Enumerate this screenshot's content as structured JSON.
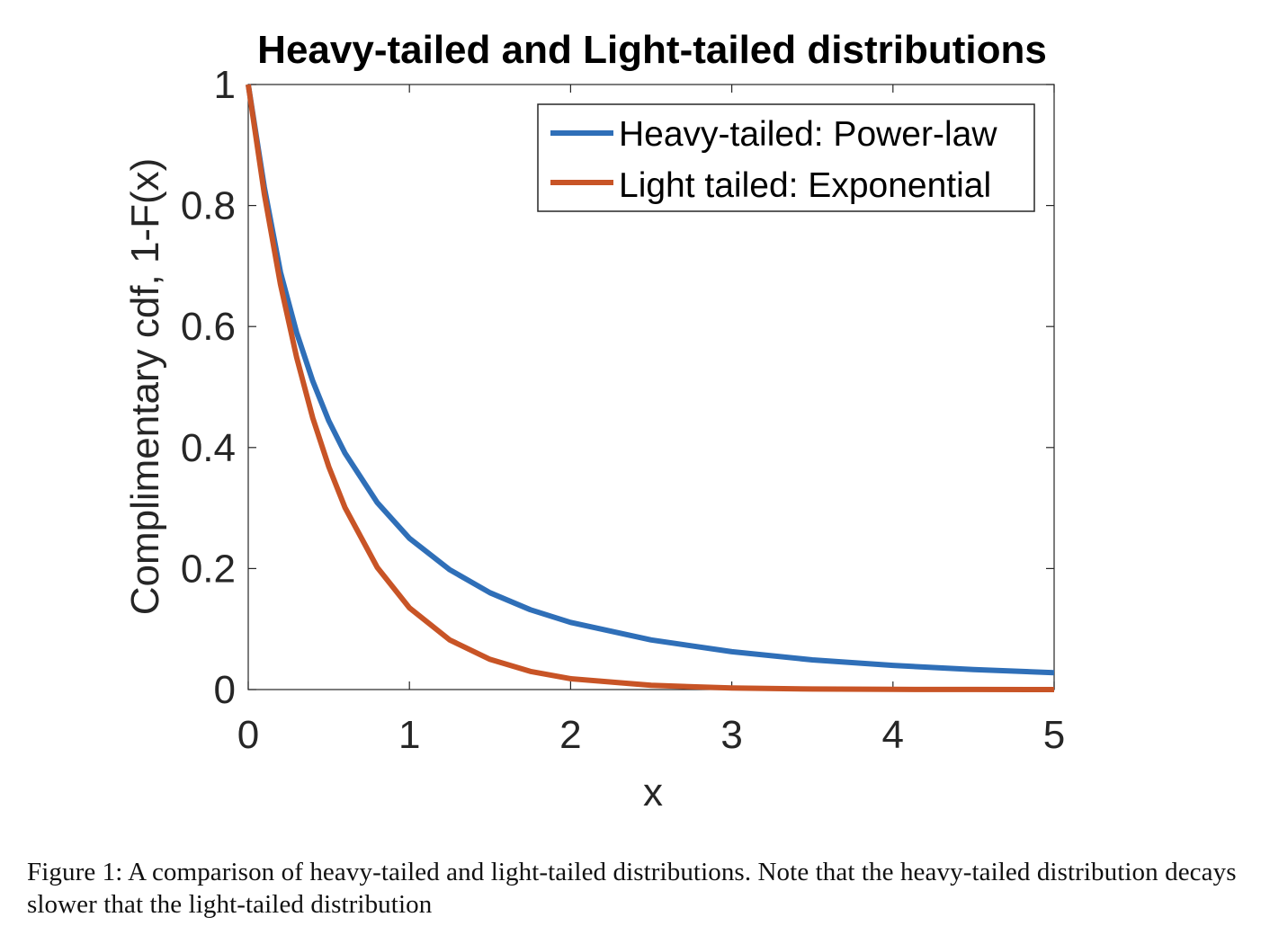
{
  "chart_data": {
    "type": "line",
    "title": "Heavy-tailed and Light-tailed distributions",
    "xlabel": "x",
    "ylabel": "Complimentary cdf, 1-F(x)",
    "xlim": [
      0,
      5
    ],
    "ylim": [
      0,
      1
    ],
    "xticks": [
      0,
      1,
      2,
      3,
      4,
      5
    ],
    "xtick_labels": [
      "0",
      "1",
      "2",
      "3",
      "4",
      "5"
    ],
    "yticks": [
      0,
      0.2,
      0.4,
      0.6,
      0.8,
      1
    ],
    "ytick_labels": [
      "0",
      "0.2",
      "0.4",
      "0.6",
      "0.8",
      "1"
    ],
    "grid": false,
    "legend_position": "top-right",
    "series": [
      {
        "name": "Heavy-tailed: Power-law",
        "color": "#2f6fb8",
        "x": [
          0,
          0.1,
          0.2,
          0.3,
          0.4,
          0.5,
          0.6,
          0.8,
          1.0,
          1.25,
          1.5,
          1.75,
          2.0,
          2.5,
          3.0,
          3.5,
          4.0,
          4.5,
          5.0
        ],
        "values": [
          1.0,
          0.83,
          0.69,
          0.59,
          0.51,
          0.444,
          0.391,
          0.309,
          0.25,
          0.198,
          0.16,
          0.132,
          0.111,
          0.082,
          0.0625,
          0.049,
          0.04,
          0.033,
          0.028
        ]
      },
      {
        "name": "Light tailed: Exponential",
        "color": "#c85426",
        "x": [
          0,
          0.1,
          0.2,
          0.3,
          0.4,
          0.5,
          0.6,
          0.8,
          1.0,
          1.25,
          1.5,
          1.75,
          2.0,
          2.5,
          3.0,
          3.5,
          4.0,
          4.5,
          5.0
        ],
        "values": [
          1.0,
          0.819,
          0.67,
          0.549,
          0.449,
          0.368,
          0.301,
          0.202,
          0.135,
          0.082,
          0.05,
          0.03,
          0.018,
          0.007,
          0.0025,
          0.0009,
          0.0003,
          0.0001,
          0.0
        ]
      }
    ]
  },
  "caption": {
    "text": "Figure 1: A comparison of heavy-tailed and light-tailed distributions. Note that the heavy-tailed distribution decays slower that the light-tailed distribution"
  }
}
